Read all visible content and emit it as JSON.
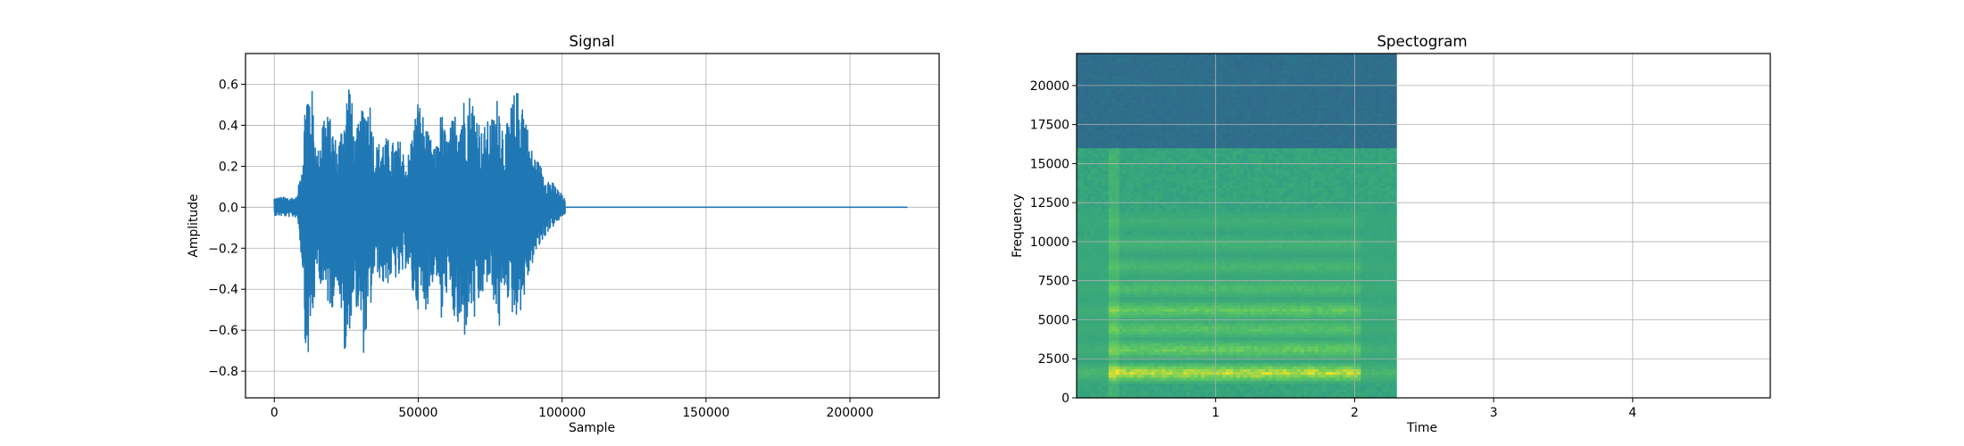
{
  "chart_data": [
    {
      "type": "line",
      "title": "Signal",
      "xlabel": "Sample",
      "ylabel": "Amplitude",
      "xlim": [
        -10000,
        231000
      ],
      "ylim": [
        -0.93,
        0.75
      ],
      "xticks": [
        0,
        50000,
        100000,
        150000,
        200000
      ],
      "xtick_labels": [
        "0",
        "50000",
        "100000",
        "150000",
        "200000"
      ],
      "yticks": [
        -0.8,
        -0.6,
        -0.4,
        -0.2,
        0.0,
        0.2,
        0.4,
        0.6
      ],
      "ytick_labels": [
        "−0.8",
        "−0.6",
        "−0.4",
        "−0.2",
        "0.0",
        "0.2",
        "0.4",
        "0.6"
      ],
      "grid": true,
      "color": "#1f77b4",
      "series": [
        {
          "x": [
            0,
            8000,
            10000,
            11000,
            13000,
            15000,
            17000,
            20000,
            22000,
            25000,
            26000,
            28000,
            31000,
            33000,
            35000,
            38000,
            41000,
            44000,
            46000,
            48000,
            50000,
            53000,
            56000,
            58000,
            60000,
            62000,
            64000,
            66000,
            68000,
            70000,
            72000,
            74000,
            76000,
            78000,
            80000,
            83000,
            86000,
            89000,
            92000,
            95000,
            98000,
            101000,
            110000,
            150000,
            200000,
            220000
          ],
          "upper": [
            0.05,
            0.05,
            0.3,
            0.65,
            0.6,
            0.25,
            0.5,
            0.42,
            0.3,
            0.55,
            0.68,
            0.35,
            0.5,
            0.58,
            0.3,
            0.35,
            0.32,
            0.33,
            0.22,
            0.38,
            0.55,
            0.38,
            0.28,
            0.48,
            0.34,
            0.44,
            0.52,
            0.55,
            0.57,
            0.52,
            0.38,
            0.42,
            0.45,
            0.58,
            0.35,
            0.55,
            0.6,
            0.3,
            0.22,
            0.15,
            0.1,
            0.04,
            0.0,
            0.0,
            0.0,
            0.0
          ],
          "lower": [
            -0.04,
            -0.05,
            -0.35,
            -0.82,
            -0.6,
            -0.3,
            -0.45,
            -0.5,
            -0.35,
            -0.85,
            -0.6,
            -0.45,
            -0.72,
            -0.55,
            -0.3,
            -0.4,
            -0.35,
            -0.37,
            -0.28,
            -0.45,
            -0.5,
            -0.5,
            -0.3,
            -0.6,
            -0.4,
            -0.55,
            -0.63,
            -0.65,
            -0.5,
            -0.6,
            -0.45,
            -0.38,
            -0.45,
            -0.62,
            -0.4,
            -0.55,
            -0.5,
            -0.3,
            -0.2,
            -0.12,
            -0.08,
            -0.03,
            0.0,
            0.0,
            0.0,
            0.0
          ]
        }
      ]
    },
    {
      "type": "heatmap",
      "title": "Spectogram",
      "xlabel": "Time",
      "ylabel": "Frequency",
      "xlim": [
        0.0,
        4.99
      ],
      "ylim": [
        0,
        22050
      ],
      "data_extent_x": [
        0.0,
        2.3
      ],
      "xticks": [
        1,
        2,
        3,
        4
      ],
      "xtick_labels": [
        "1",
        "2",
        "3",
        "4"
      ],
      "yticks": [
        0,
        2500,
        5000,
        7500,
        10000,
        12500,
        15000,
        17500,
        20000
      ],
      "ytick_labels": [
        "0",
        "2500",
        "5000",
        "7500",
        "10000",
        "12500",
        "15000",
        "17500",
        "20000"
      ],
      "grid": true,
      "colormap": [
        "#3b528b",
        "#21918c",
        "#5ec962",
        "#fde725"
      ],
      "regions": [
        {
          "y": [
            16000,
            22050
          ],
          "level": 0.15
        },
        {
          "y": [
            0,
            16000
          ],
          "level": 0.45
        }
      ],
      "bands": [
        {
          "freq": 1600,
          "level": 1.0
        },
        {
          "freq": 3100,
          "level": 0.75
        },
        {
          "freq": 4400,
          "level": 0.68
        },
        {
          "freq": 5600,
          "level": 0.72
        },
        {
          "freq": 7000,
          "level": 0.62
        },
        {
          "freq": 8400,
          "level": 0.58
        },
        {
          "freq": 9800,
          "level": 0.55
        },
        {
          "freq": 11300,
          "level": 0.52
        }
      ]
    }
  ]
}
